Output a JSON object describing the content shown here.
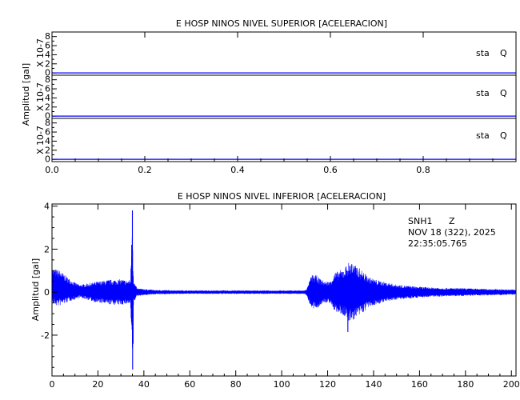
{
  "chart_data": [
    {
      "type": "line",
      "title": "E HOSP NINOS NIVEL SUPERIOR [ACELERACION]",
      "ylabel": "Amplitud [gal]",
      "xlim": [
        0,
        1
      ],
      "x_ticks": [
        "0.0",
        "0.2",
        "0.4",
        "0.6",
        "0.8"
      ],
      "line_color": "#0000ff",
      "panels": [
        {
          "unit_label": "X 10-7",
          "y_ticks": [
            "8",
            "6",
            "4",
            "2",
            "0"
          ],
          "station_label": "sta",
          "component_label": "Q",
          "ylim": [
            -0.5,
            9
          ],
          "values": [
            0,
            0
          ]
        },
        {
          "unit_label": "X 10-7",
          "y_ticks": [
            "8",
            "6",
            "4",
            "2",
            "0"
          ],
          "station_label": "sta",
          "component_label": "Q",
          "ylim": [
            -0.5,
            9
          ],
          "values": [
            0,
            0
          ]
        },
        {
          "unit_label": "X 10-7",
          "y_ticks": [
            "8",
            "6",
            "4",
            "2",
            "0"
          ],
          "station_label": "sta",
          "component_label": "Q",
          "ylim": [
            -0.5,
            9
          ],
          "values": [
            0,
            0
          ]
        }
      ]
    },
    {
      "type": "line",
      "title": "E HOSP NINOS NIVEL INFERIOR [ACELERACION]",
      "ylabel": "Amplitud [gal]",
      "station": "SNH1",
      "component": "Z",
      "date": "NOV 18 (322), 2025",
      "time": "22:35:05.765",
      "xlim": [
        0,
        202
      ],
      "ylim": [
        -3.9,
        4.1
      ],
      "x_ticks": [
        "0",
        "20",
        "40",
        "60",
        "80",
        "100",
        "120",
        "140",
        "160",
        "180",
        "200"
      ],
      "y_ticks": [
        "4",
        "2",
        "0",
        "-2"
      ],
      "line_color": "#0000ff",
      "envelope": [
        [
          0,
          0.85
        ],
        [
          3,
          0.85
        ],
        [
          8,
          0.5
        ],
        [
          12,
          0.3
        ],
        [
          16,
          0.4
        ],
        [
          20,
          0.5
        ],
        [
          25,
          0.58
        ],
        [
          30,
          0.6
        ],
        [
          33,
          0.55
        ],
        [
          34.2,
          0.6
        ],
        [
          34.6,
          2.2
        ],
        [
          35,
          3.8
        ],
        [
          35.3,
          1.5
        ],
        [
          35.6,
          0.5
        ],
        [
          37,
          0.18
        ],
        [
          45,
          0.1
        ],
        [
          60,
          0.08
        ],
        [
          80,
          0.08
        ],
        [
          100,
          0.08
        ],
        [
          110,
          0.08
        ],
        [
          111,
          0.18
        ],
        [
          113,
          0.8
        ],
        [
          115,
          0.8
        ],
        [
          117,
          0.6
        ],
        [
          119,
          0.5
        ],
        [
          121,
          0.5
        ],
        [
          123,
          0.9
        ],
        [
          125,
          1.0
        ],
        [
          127,
          1.1
        ],
        [
          129,
          1.4
        ],
        [
          131,
          1.3
        ],
        [
          133,
          1.2
        ],
        [
          135,
          1.0
        ],
        [
          138,
          0.7
        ],
        [
          142,
          0.55
        ],
        [
          146,
          0.45
        ],
        [
          150,
          0.35
        ],
        [
          155,
          0.3
        ],
        [
          160,
          0.25
        ],
        [
          170,
          0.2
        ],
        [
          180,
          0.18
        ],
        [
          190,
          0.15
        ],
        [
          202,
          0.12
        ]
      ],
      "offset": [
        [
          0,
          0.25
        ],
        [
          5,
          0.15
        ],
        [
          10,
          0.05
        ],
        [
          20,
          0.0
        ],
        [
          202,
          0.0
        ]
      ],
      "spikes": [
        {
          "x": 35.0,
          "value": 3.8
        },
        {
          "x": 35.1,
          "value": -3.6
        },
        {
          "x": 34.7,
          "value": 2.2
        },
        {
          "x": 35.3,
          "value": -2.4
        },
        {
          "x": 128.8,
          "value": -1.85
        },
        {
          "x": 130.5,
          "value": 1.3
        }
      ]
    }
  ]
}
